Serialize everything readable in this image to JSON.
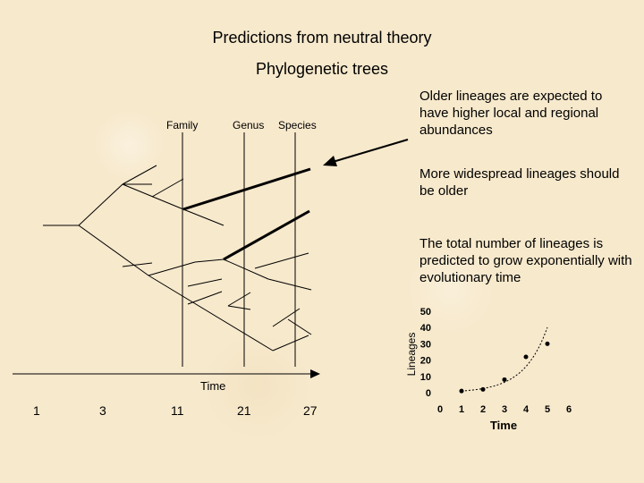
{
  "title": "Predictions from neutral theory",
  "subtitle": "Phylogenetic trees",
  "columns": [
    "Family",
    "Genus",
    "Species"
  ],
  "notes": [
    "Older lineages are expected to have higher local and regional abundances",
    "More widespread lineages should be older",
    "The total number of lineages is predicted to grow exponentially with evolutionary time"
  ],
  "time_axis": {
    "label": "Time",
    "ticks": [
      "1",
      "3",
      "11",
      "21",
      "27"
    ]
  },
  "chart_data": {
    "type": "scatter",
    "xlabel": "Time",
    "ylabel": "Lineages",
    "xlim": [
      0,
      6
    ],
    "ylim": [
      0,
      50
    ],
    "x_ticks": [
      "0",
      "1",
      "2",
      "3",
      "4",
      "5",
      "6"
    ],
    "y_ticks": [
      "0",
      "10",
      "20",
      "30",
      "40",
      "50"
    ],
    "points": [
      {
        "x": 1,
        "y": 1
      },
      {
        "x": 2,
        "y": 2
      },
      {
        "x": 3,
        "y": 8
      },
      {
        "x": 4,
        "y": 22
      },
      {
        "x": 5,
        "y": 30
      }
    ],
    "trend": "exponential"
  }
}
